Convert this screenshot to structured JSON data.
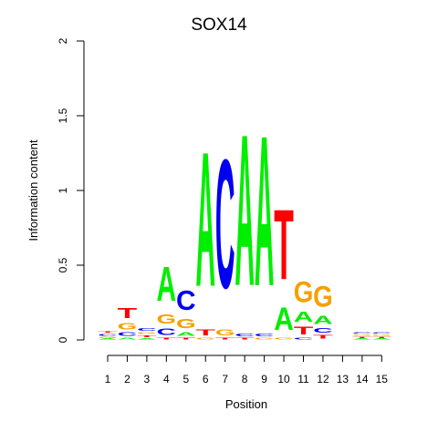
{
  "chart_data": {
    "type": "sequence-logo",
    "title": "SOX14",
    "xlabel": "Position",
    "ylabel": "Information content",
    "ylim": [
      0,
      2
    ],
    "y_ticks": [
      0,
      0.5,
      1,
      1.5,
      2
    ],
    "y_tick_labels": [
      "0",
      "0.5",
      "1",
      "1.5",
      "2"
    ],
    "x_tick_labels": [
      "1",
      "2",
      "3",
      "4",
      "5",
      "6",
      "7",
      "8",
      "9",
      "10",
      "11",
      "12",
      "13",
      "14",
      "15"
    ],
    "colors": {
      "A": "#00ee00",
      "C": "#0000ee",
      "G": "#f5a000",
      "T": "#ff0000"
    },
    "positions": [
      {
        "position": 1,
        "letters": [
          [
            "A",
            0.01
          ],
          [
            "G",
            0.015
          ],
          [
            "C",
            0.02
          ],
          [
            "T",
            0.015
          ]
        ]
      },
      {
        "position": 2,
        "letters": [
          [
            "A",
            0.02
          ],
          [
            "C",
            0.035
          ],
          [
            "G",
            0.07
          ],
          [
            "T",
            0.105
          ]
        ]
      },
      {
        "position": 3,
        "letters": [
          [
            "A",
            0.015
          ],
          [
            "T",
            0.02
          ],
          [
            "G",
            0.02
          ],
          [
            "C",
            0.03
          ]
        ]
      },
      {
        "position": 4,
        "letters": [
          [
            "T",
            0.02
          ],
          [
            "C",
            0.07
          ],
          [
            "G",
            0.1
          ],
          [
            "A",
            0.37
          ]
        ]
      },
      {
        "position": 5,
        "letters": [
          [
            "T",
            0.02
          ],
          [
            "A",
            0.04
          ],
          [
            "G",
            0.1
          ],
          [
            "C",
            0.21
          ]
        ]
      },
      {
        "position": 6,
        "letters": [
          [
            "G",
            0.02
          ],
          [
            "T",
            0.06
          ],
          [
            "A",
            1.44
          ]
        ]
      },
      {
        "position": 7,
        "letters": [
          [
            "T",
            0.02
          ],
          [
            "G",
            0.06
          ],
          [
            "C",
            1.38
          ]
        ]
      },
      {
        "position": 8,
        "letters": [
          [
            "T",
            0.02
          ],
          [
            "C",
            0.03
          ],
          [
            "A",
            1.62
          ]
        ]
      },
      {
        "position": 9,
        "letters": [
          [
            "G",
            0.02
          ],
          [
            "C",
            0.03
          ],
          [
            "A",
            1.61
          ]
        ]
      },
      {
        "position": 10,
        "letters": [
          [
            "G",
            0.02
          ],
          [
            "A",
            0.24
          ],
          [
            "T",
            0.75
          ]
        ]
      },
      {
        "position": 11,
        "letters": [
          [
            "C",
            0.02
          ],
          [
            "T",
            0.08
          ],
          [
            "A",
            0.11
          ],
          [
            "G",
            0.22
          ]
        ]
      },
      {
        "position": 12,
        "letters": [
          [
            "T",
            0.04
          ],
          [
            "C",
            0.05
          ],
          [
            "A",
            0.09
          ],
          [
            "G",
            0.22
          ]
        ]
      },
      {
        "position": 13,
        "letters": []
      },
      {
        "position": 14,
        "letters": [
          [
            "A",
            0.01
          ],
          [
            "T",
            0.015
          ],
          [
            "G",
            0.015
          ],
          [
            "C",
            0.015
          ]
        ]
      },
      {
        "position": 15,
        "letters": [
          [
            "A",
            0.01
          ],
          [
            "T",
            0.015
          ],
          [
            "G",
            0.015
          ],
          [
            "C",
            0.015
          ]
        ]
      }
    ]
  }
}
